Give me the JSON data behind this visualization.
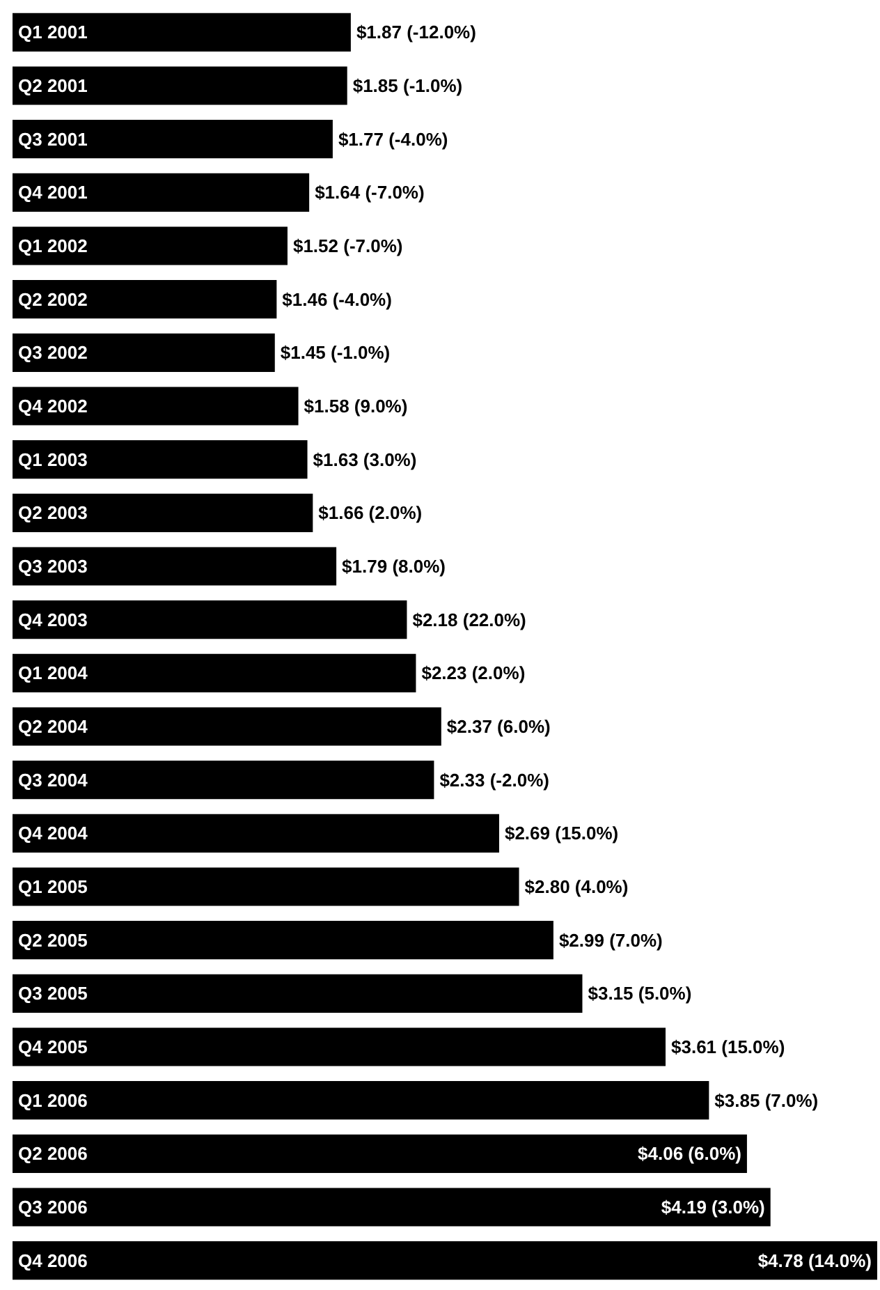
{
  "chart_data": {
    "type": "bar",
    "orientation": "horizontal",
    "tick_labels": "y",
    "categories": [
      "Q1 2001",
      "Q2 2001",
      "Q3 2001",
      "Q4 2001",
      "Q1 2002",
      "Q2 2002",
      "Q3 2002",
      "Q4 2002",
      "Q1 2003",
      "Q2 2003",
      "Q3 2003",
      "Q4 2003",
      "Q1 2004",
      "Q2 2004",
      "Q3 2004",
      "Q4 2004",
      "Q1 2005",
      "Q2 2005",
      "Q3 2005",
      "Q4 2005",
      "Q1 2006",
      "Q2 2006",
      "Q3 2006",
      "Q4 2006"
    ],
    "color": "#000000",
    "values": [
      1.87,
      1.85,
      1.77,
      1.64,
      1.52,
      1.46,
      1.45,
      1.58,
      1.63,
      1.66,
      1.79,
      2.18,
      2.23,
      2.37,
      2.33,
      2.69,
      2.8,
      2.99,
      3.15,
      3.61,
      3.85,
      4.06,
      4.19,
      4.78
    ],
    "value_labels": [
      "$1.87 (-12.0%)",
      "$1.85 (-1.0%)",
      "$1.77 (-4.0%)",
      "$1.64 (-7.0%)",
      "$1.52 (-7.0%)",
      "$1.46 (-4.0%)",
      "$1.45 (-1.0%)",
      "$1.58 (9.0%)",
      "$1.63 (3.0%)",
      "$1.66 (2.0%)",
      "$1.79 (8.0%)",
      "$2.18 (22.0%)",
      "$2.23 (2.0%)",
      "$2.37 (6.0%)",
      "$2.33 (-2.0%)",
      "$2.69 (15.0%)",
      "$2.80 (4.0%)",
      "$2.99 (7.0%)",
      "$3.15 (5.0%)",
      "$3.61 (15.0%)",
      "$3.85 (7.0%)",
      "$4.06 (6.0%)",
      "$4.19 (3.0%)",
      "$4.78 (14.0%)"
    ]
  }
}
